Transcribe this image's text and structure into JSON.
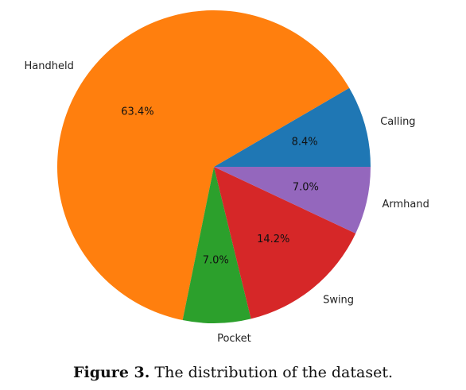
{
  "chart_data": {
    "type": "pie",
    "start_angle_deg": 0,
    "direction": "counterclockwise",
    "slices": [
      {
        "label": "Calling",
        "value": 8.4,
        "pct_label": "8.4%",
        "color": "#1f77b4"
      },
      {
        "label": "Handheld",
        "value": 63.4,
        "pct_label": "63.4%",
        "color": "#ff7f0e"
      },
      {
        "label": "Pocket",
        "value": 7.0,
        "pct_label": "7.0%",
        "color": "#2ca02c"
      },
      {
        "label": "Swing",
        "value": 14.2,
        "pct_label": "14.2%",
        "color": "#d62728"
      },
      {
        "label": "Armhand",
        "value": 7.0,
        "pct_label": "7.0%",
        "color": "#9467bd"
      }
    ]
  },
  "caption": {
    "label": "Figure 3.",
    "text": "The distribution of the dataset."
  }
}
